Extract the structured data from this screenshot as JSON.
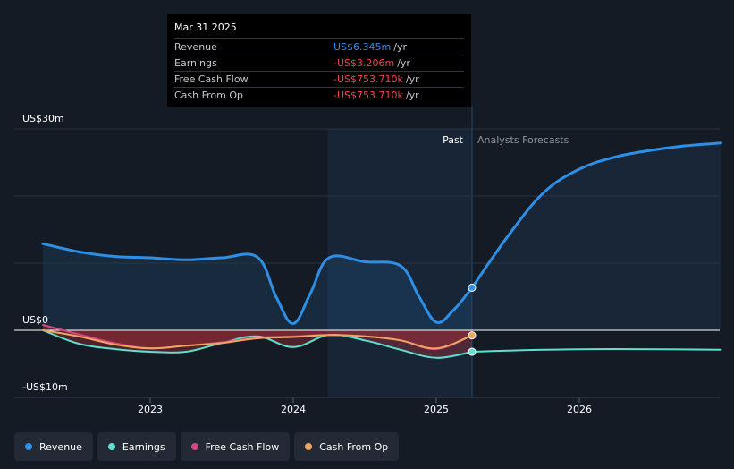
{
  "tooltip": {
    "date": "Mar 31 2025",
    "rows": [
      {
        "label": "Revenue",
        "value": "US$6.345m",
        "unit": "/yr",
        "color": "#2e8fe6"
      },
      {
        "label": "Earnings",
        "value": "-US$3.206m",
        "unit": "/yr",
        "color": "#f0424b"
      },
      {
        "label": "Free Cash Flow",
        "value": "-US$753.710k",
        "unit": "/yr",
        "color": "#f0424b"
      },
      {
        "label": "Cash From Op",
        "value": "-US$753.710k",
        "unit": "/yr",
        "color": "#f0424b"
      }
    ]
  },
  "labels": {
    "past": "Past",
    "forecast": "Analysts Forecasts"
  },
  "legend": [
    {
      "label": "Revenue",
      "color": "#2e8fe6"
    },
    {
      "label": "Earnings",
      "color": "#5fe0cf"
    },
    {
      "label": "Free Cash Flow",
      "color": "#d5487f"
    },
    {
      "label": "Cash From Op",
      "color": "#efa561"
    }
  ],
  "chart_data": {
    "type": "line",
    "y_axis": {
      "unit": "US$ millions",
      "ylim": [
        -10,
        30
      ],
      "tick_labels": [
        "US$30m",
        "US$0",
        "-US$10m"
      ],
      "grid_step": 10
    },
    "x_axis": {
      "tick_labels": [
        "2023",
        "2024",
        "2025",
        "2026"
      ],
      "range": [
        2022.25,
        2026.99
      ]
    },
    "past_until": 2025.25,
    "highlight_from": 2024.24,
    "series": [
      {
        "name": "Revenue",
        "color": "#2e8fe6",
        "x": [
          2022.25,
          2022.5,
          2022.75,
          2023.0,
          2023.25,
          2023.5,
          2023.75,
          2023.88,
          2024.0,
          2024.12,
          2024.25,
          2024.5,
          2024.75,
          2024.88,
          2025.0,
          2025.12,
          2025.25
        ],
        "y": [
          12.9,
          11.7,
          11.0,
          10.8,
          10.5,
          10.8,
          10.9,
          5.0,
          1.0,
          5.5,
          10.8,
          10.2,
          9.6,
          5.0,
          1.2,
          3.0,
          6.345
        ]
      },
      {
        "name": "Revenue forecast",
        "color": "#2e8fe6",
        "x": [
          2025.25,
          2025.5,
          2025.75,
          2026.0,
          2026.25,
          2026.5,
          2026.75,
          2026.99
        ],
        "y": [
          6.345,
          14.0,
          20.5,
          24.0,
          25.8,
          26.8,
          27.5,
          27.9
        ]
      },
      {
        "name": "Earnings",
        "color": "#5fe0cf",
        "x": [
          2022.25,
          2022.5,
          2022.75,
          2023.0,
          2023.25,
          2023.5,
          2023.75,
          2024.0,
          2024.25,
          2024.5,
          2024.75,
          2025.0,
          2025.25
        ],
        "y": [
          0.0,
          -2.0,
          -2.8,
          -3.2,
          -3.2,
          -1.9,
          -0.9,
          -2.5,
          -0.7,
          -1.5,
          -2.9,
          -4.1,
          -3.206
        ]
      },
      {
        "name": "Earnings forecast",
        "color": "#5fe0cf",
        "x": [
          2025.25,
          2025.75,
          2026.25,
          2026.99
        ],
        "y": [
          -3.206,
          -2.9,
          -2.8,
          -2.9
        ]
      },
      {
        "name": "Free Cash Flow",
        "color": "#d5487f",
        "x": [
          2022.25,
          2022.5,
          2022.75,
          2023.0,
          2023.25,
          2023.5,
          2023.75,
          2024.0,
          2024.25,
          2024.5,
          2024.75,
          2025.0,
          2025.25
        ],
        "y": [
          0.8,
          -0.6,
          -1.9,
          -2.7,
          -2.3,
          -1.8,
          -1.1,
          -0.9,
          -0.7,
          -0.9,
          -1.5,
          -2.8,
          -0.754
        ]
      },
      {
        "name": "Cash From Op",
        "color": "#efa561",
        "x": [
          2022.25,
          2022.5,
          2022.75,
          2023.0,
          2023.25,
          2023.5,
          2023.75,
          2024.0,
          2024.25,
          2024.5,
          2024.75,
          2025.0,
          2025.25
        ],
        "y": [
          0.0,
          -0.9,
          -2.1,
          -2.7,
          -2.3,
          -1.9,
          -1.2,
          -1.0,
          -0.7,
          -0.9,
          -1.5,
          -2.7,
          -0.754
        ]
      }
    ]
  }
}
